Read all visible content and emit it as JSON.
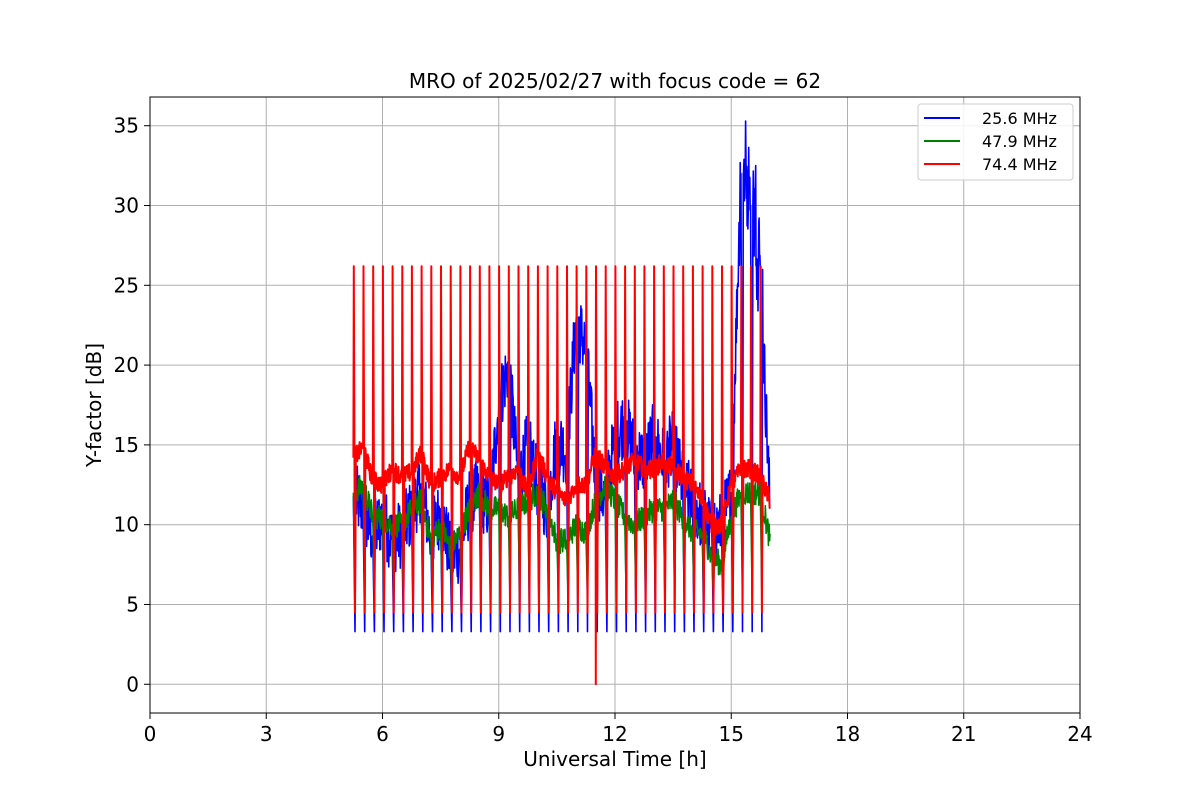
{
  "chart_data": {
    "type": "line",
    "title": "MRO of 2025/02/27 with focus code = 62",
    "xlabel": "Universal Time [h]",
    "ylabel": "Y-factor [dB]",
    "xlim": [
      0,
      24
    ],
    "ylim": [
      -1.8,
      36.8
    ],
    "xticks": [
      0,
      3,
      6,
      9,
      12,
      15,
      18,
      21,
      24
    ],
    "yticks": [
      0,
      5,
      10,
      15,
      20,
      25,
      30,
      35
    ],
    "grid": true,
    "legend_position": "top-right",
    "series": [
      {
        "name": "25.6 MHz",
        "color": "#0000ff",
        "baseline_x": [
          5.25,
          5.5,
          5.75,
          6.0,
          6.25,
          6.5,
          6.75,
          7.0,
          7.25,
          7.5,
          7.75,
          8.0,
          8.25,
          8.5,
          8.75,
          9.0,
          9.25,
          9.5,
          9.75,
          10.0,
          10.25,
          10.5,
          10.75,
          11.0,
          11.25,
          11.5,
          11.75,
          12.0,
          12.25,
          12.5,
          12.75,
          13.0,
          13.25,
          13.5,
          13.75,
          14.0,
          14.25,
          14.5,
          14.75,
          15.0,
          15.25,
          15.5,
          15.75,
          16.0
        ],
        "baseline_y": [
          11.8,
          11.0,
          9.2,
          10.5,
          9.0,
          9.5,
          10.8,
          12.5,
          9.0,
          11.0,
          8.0,
          8.5,
          11.5,
          12.0,
          11.0,
          17.5,
          20.0,
          13.0,
          15.0,
          12.5,
          11.0,
          15.5,
          14.5,
          23.0,
          21.0,
          13.0,
          11.5,
          15.5,
          16.5,
          14.5,
          14.0,
          15.5,
          14.0,
          15.0,
          12.5,
          11.5,
          10.5,
          9.5,
          10.0,
          12.0,
          32.0,
          30.0,
          26.0,
          11.0
        ],
        "dip_low": 3.3
      },
      {
        "name": "47.9 MHz",
        "color": "#008000",
        "baseline_x": [
          5.25,
          5.5,
          5.75,
          6.0,
          6.25,
          6.5,
          6.75,
          7.0,
          7.25,
          7.5,
          7.75,
          8.0,
          8.25,
          8.5,
          8.75,
          9.0,
          9.25,
          9.5,
          9.75,
          10.0,
          10.25,
          10.5,
          10.75,
          11.0,
          11.25,
          11.5,
          11.75,
          12.0,
          12.25,
          12.5,
          12.75,
          13.0,
          13.25,
          13.5,
          13.75,
          14.0,
          14.25,
          14.5,
          14.75,
          15.0,
          15.25,
          15.5,
          15.75,
          16.0
        ],
        "baseline_y": [
          12.0,
          12.5,
          10.5,
          10.5,
          10.0,
          10.0,
          11.0,
          11.5,
          9.0,
          10.0,
          8.5,
          9.5,
          11.0,
          12.0,
          11.0,
          11.0,
          10.5,
          11.0,
          11.5,
          12.0,
          11.0,
          9.0,
          9.0,
          10.0,
          9.5,
          11.5,
          12.5,
          11.5,
          10.5,
          10.0,
          10.5,
          11.0,
          11.0,
          11.5,
          10.5,
          9.5,
          9.5,
          8.0,
          7.5,
          10.5,
          12.0,
          12.0,
          12.0,
          9.0
        ],
        "dip_low": 5.5
      },
      {
        "name": "74.4 MHz",
        "color": "#ff0000",
        "baseline_x": [
          5.25,
          5.5,
          5.75,
          6.0,
          6.25,
          6.5,
          6.75,
          7.0,
          7.25,
          7.5,
          7.75,
          8.0,
          8.25,
          8.5,
          8.75,
          9.0,
          9.25,
          9.5,
          9.75,
          10.0,
          10.25,
          10.5,
          10.75,
          11.0,
          11.25,
          11.5,
          11.75,
          12.0,
          12.25,
          12.5,
          12.75,
          13.0,
          13.25,
          13.5,
          13.75,
          14.0,
          14.25,
          14.5,
          14.75,
          15.0,
          15.25,
          15.5,
          15.75,
          16.0
        ],
        "baseline_y": [
          14.2,
          14.8,
          12.8,
          12.5,
          13.5,
          13.0,
          13.3,
          14.5,
          12.5,
          13.0,
          13.5,
          13.0,
          15.0,
          14.0,
          13.0,
          12.5,
          13.0,
          13.5,
          12.0,
          14.5,
          13.0,
          12.0,
          11.5,
          12.5,
          12.5,
          14.5,
          13.5,
          13.0,
          13.5,
          14.0,
          13.5,
          13.5,
          14.0,
          13.5,
          13.0,
          12.5,
          11.5,
          10.0,
          10.0,
          12.5,
          13.5,
          13.5,
          13.0,
          11.5
        ],
        "dip_low": 4.5,
        "spike_high": 26.2
      }
    ],
    "cycle_spikes_start": 5.25,
    "cycle_spikes_end": 15.85,
    "cycle_spike_step": 0.25,
    "annotation_drop": {
      "series": "74.4 MHz",
      "x": 11.5,
      "y": 0
    }
  }
}
